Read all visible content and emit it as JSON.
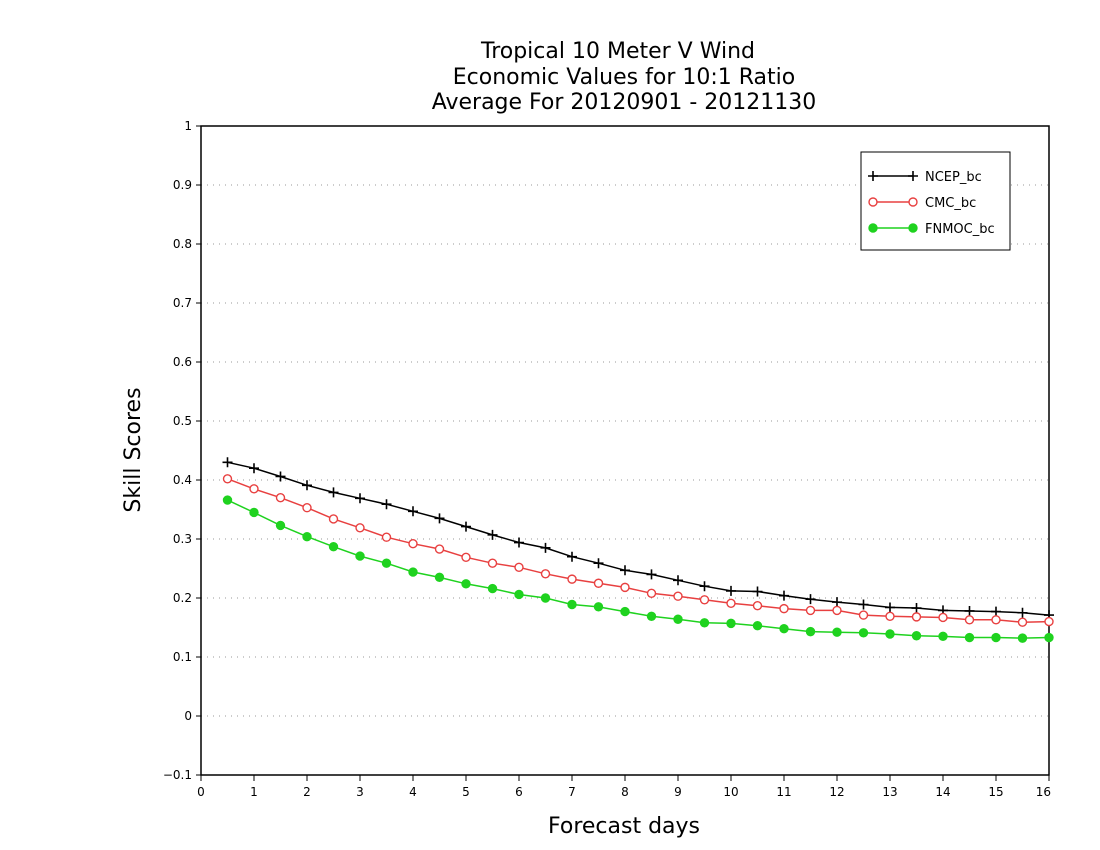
{
  "chart_data": {
    "type": "line",
    "title_lines": [
      "Tropical 10 Meter V Wind",
      "Economic Values for 10:1 Ratio",
      "Average For 20120901 - 20121130"
    ],
    "xlabel": "Forecast days",
    "ylabel": "Skill Scores",
    "xlim": [
      0,
      16
    ],
    "ylim": [
      -0.1,
      1
    ],
    "xticks": [
      0,
      1,
      2,
      3,
      4,
      5,
      6,
      7,
      8,
      9,
      10,
      11,
      12,
      13,
      14,
      15,
      16
    ],
    "xtick_labels": [
      "0",
      "1",
      "2",
      "3",
      "4",
      "5",
      "6",
      "7",
      "8",
      "9",
      "10",
      "11",
      "12",
      "13",
      "14",
      "15",
      "16"
    ],
    "yticks": [
      -0.1,
      0,
      0.1,
      0.2,
      0.3,
      0.4,
      0.5,
      0.6,
      0.7,
      0.8,
      0.9,
      1
    ],
    "ytick_labels": [
      "−0.1",
      "0",
      "0.1",
      "0.2",
      "0.3",
      "0.4",
      "0.5",
      "0.6",
      "0.7",
      "0.8",
      "0.9",
      "1"
    ],
    "grid": "horizontal dotted",
    "legend_position": "top-right",
    "x": [
      0.5,
      1,
      1.5,
      2,
      2.5,
      3,
      3.5,
      4,
      4.5,
      5,
      5.5,
      6,
      6.5,
      7,
      7.5,
      8,
      8.5,
      9,
      9.5,
      10,
      10.5,
      11,
      11.5,
      12,
      12.5,
      13,
      13.5,
      14,
      14.5,
      15,
      15.5,
      16
    ],
    "series": [
      {
        "name": "NCEP_bc",
        "color": "#000000",
        "marker": "plus",
        "values": [
          0.43,
          0.42,
          0.406,
          0.391,
          0.379,
          0.369,
          0.359,
          0.347,
          0.335,
          0.321,
          0.307,
          0.294,
          0.285,
          0.27,
          0.259,
          0.247,
          0.24,
          0.23,
          0.22,
          0.212,
          0.211,
          0.204,
          0.198,
          0.193,
          0.189,
          0.184,
          0.183,
          0.179,
          0.178,
          0.177,
          0.175,
          0.171
        ]
      },
      {
        "name": "CMC_bc",
        "color": "#e84040",
        "marker": "open-circle",
        "values": [
          0.402,
          0.385,
          0.37,
          0.353,
          0.334,
          0.319,
          0.303,
          0.292,
          0.283,
          0.269,
          0.259,
          0.252,
          0.241,
          0.232,
          0.225,
          0.218,
          0.208,
          0.203,
          0.197,
          0.191,
          0.187,
          0.182,
          0.179,
          0.179,
          0.171,
          0.169,
          0.168,
          0.167,
          0.163,
          0.163,
          0.159,
          0.16
        ]
      },
      {
        "name": "FNMOC_bc",
        "color": "#1fd21f",
        "marker": "filled-circle",
        "values": [
          0.366,
          0.345,
          0.323,
          0.304,
          0.287,
          0.271,
          0.259,
          0.244,
          0.235,
          0.224,
          0.216,
          0.206,
          0.2,
          0.189,
          0.185,
          0.177,
          0.169,
          0.164,
          0.158,
          0.157,
          0.153,
          0.148,
          0.143,
          0.142,
          0.141,
          0.139,
          0.136,
          0.135,
          0.133,
          0.133,
          0.132,
          0.133
        ]
      }
    ]
  }
}
